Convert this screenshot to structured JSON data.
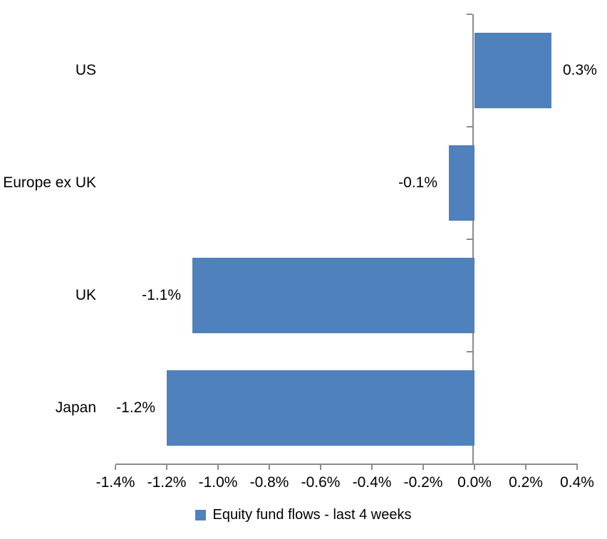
{
  "chart_data": {
    "type": "bar",
    "orientation": "horizontal",
    "title": "",
    "categories": [
      "US",
      "Europe ex UK",
      "UK",
      "Japan"
    ],
    "series": [
      {
        "name": "Equity fund flows - last 4 weeks",
        "values": [
          0.3,
          -0.1,
          -1.1,
          -1.2
        ],
        "labels": [
          "0.3%",
          "-0.1%",
          "-1.1%",
          "-1.2%"
        ]
      }
    ],
    "xlabel": "",
    "ylabel": "",
    "x_axis": {
      "min": -1.4,
      "max": 0.4,
      "step": 0.2,
      "tick_labels": [
        "-1.4%",
        "-1.2%",
        "-1.0%",
        "-0.8%",
        "-0.6%",
        "-0.4%",
        "-0.2%",
        "0.0%",
        "0.2%",
        "0.4%"
      ],
      "unit": "percent"
    },
    "grid": false,
    "data_labels_position": "outside-end",
    "legend": {
      "position": "bottom-center",
      "entries": [
        {
          "label": "Equity fund flows - last 4 weeks",
          "color": "#4F81BD"
        }
      ]
    },
    "colors": {
      "bar": "#4F81BD",
      "axis": "#8C8C8C",
      "text": "#000000",
      "background": "#FFFFFF"
    }
  }
}
